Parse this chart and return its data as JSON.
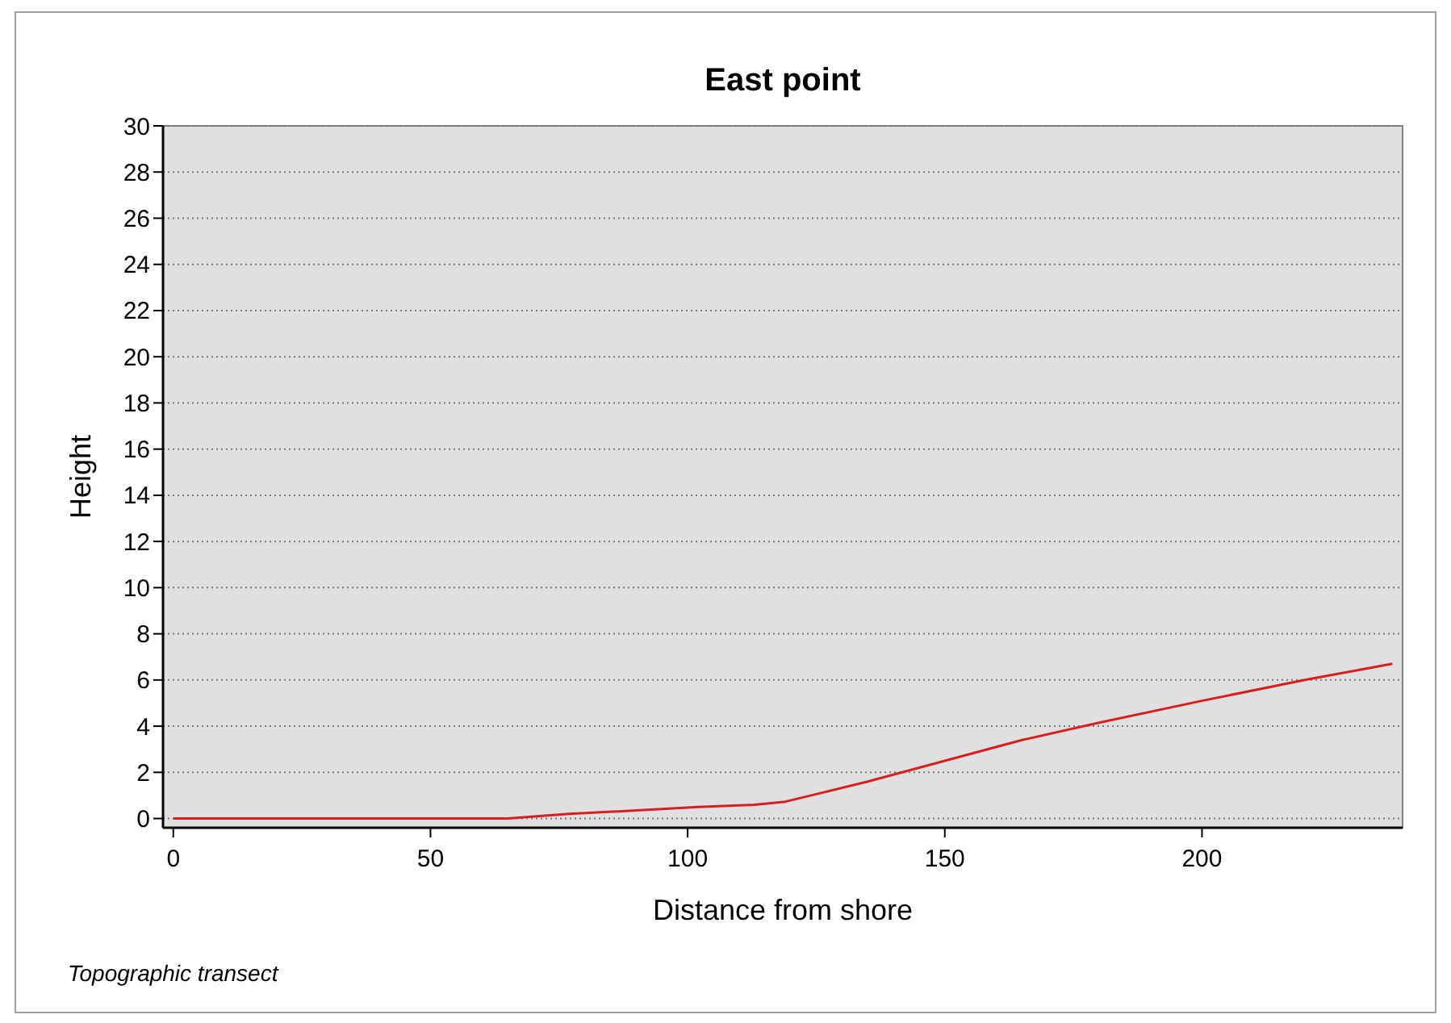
{
  "chart_data": {
    "type": "line",
    "title": "East point",
    "xlabel": "Distance from shore",
    "ylabel": "Height",
    "x": [
      0,
      65,
      77,
      90,
      102,
      113,
      119,
      135,
      150,
      165,
      180,
      200,
      220,
      237
    ],
    "series": [
      {
        "color": "#d62020",
        "values": [
          0,
          0,
          0.2,
          0.35,
          0.5,
          0.6,
          0.73,
          1.6,
          2.5,
          3.4,
          4.15,
          5.1,
          6,
          6.7
        ]
      }
    ],
    "xlim": [
      -2,
      239
    ],
    "xticks": [
      0,
      50,
      100,
      150,
      200
    ],
    "ylim": [
      -0.4,
      30
    ],
    "yticks": [
      0,
      2,
      4,
      6,
      8,
      10,
      12,
      14,
      16,
      18,
      20,
      22,
      24,
      26,
      28,
      30
    ],
    "grid": "y",
    "marker": "none",
    "line_style": "solid",
    "annotations": [
      "Topographic transect"
    ]
  }
}
